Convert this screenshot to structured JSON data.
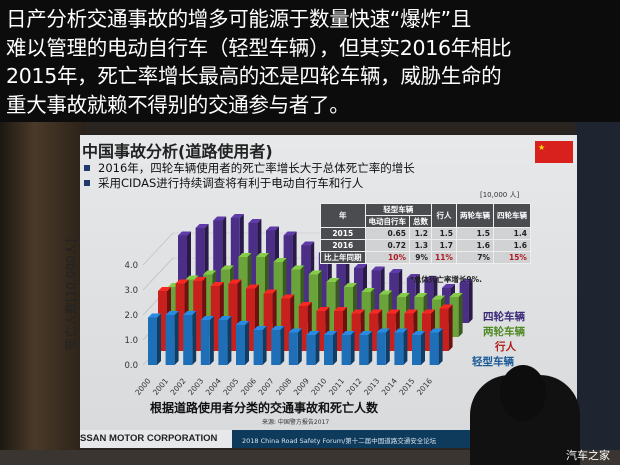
{
  "caption": {
    "lines": [
      "日产分析交通事故的增多可能源于数量快速“爆炸”且",
      "难以管理的电动自行车（轻型车辆），但其实2016年相比",
      "2015年，死亡率增长最高的还是四轮车辆，威胁生命的",
      "重大事故就赖不得别的交通参与者了。"
    ]
  },
  "slide": {
    "title": "中国事故分析(道路使用者)",
    "bullets": [
      "2016年，四轮车辆使用者的死亡率增长大于总体死亡率的增长",
      "采用CIDAS进行持续调查将有利于电动自行车和行人"
    ],
    "unit": "[10,000 人]",
    "table": {
      "header_year": "年",
      "header_group": "轻型车辆",
      "header_ebike": "电动自行车",
      "header_total": "总数",
      "header_ped": "行人",
      "header_two": "两轮车辆",
      "header_four": "四轮车辆",
      "rows": [
        [
          "2015",
          "0.65",
          "1.2",
          "1.5",
          "1.5",
          "1.4"
        ],
        [
          "2016",
          "0.72",
          "1.3",
          "1.7",
          "1.6",
          "1.6"
        ],
        [
          "比上年同期",
          "10%",
          "9%",
          "11%",
          "7%",
          "15%"
        ]
      ]
    },
    "note": "*总体死亡率增长9%.",
    "source": "来源: 中国警方报告2017",
    "footer_company": "SSAN MOTOR CORPORATION",
    "footer_forum": "2018 China Road Safety Forum/第十二届中国道路交通安全论坛"
  },
  "chart_data": {
    "type": "bar",
    "title": "根据道路使用者分类的交通事故和死亡人数",
    "ylabel": "死亡人数[10,000人]",
    "ylim": [
      0,
      4
    ],
    "yticks": [
      "0.0",
      "1.0",
      "2.0",
      "3.0",
      "4.0"
    ],
    "categories": [
      "2000",
      "2001",
      "2002",
      "2003",
      "2004",
      "2005",
      "2006",
      "2007",
      "2008",
      "2009",
      "2010",
      "2011",
      "2012",
      "2013",
      "2014",
      "2015",
      "2016"
    ],
    "legend_position": "right",
    "series": [
      {
        "name": "四轮车辆",
        "color": "#4b2f86",
        "values": [
          3.5,
          3.8,
          4.1,
          4.2,
          4.0,
          3.7,
          3.5,
          3.1,
          2.8,
          2.4,
          2.2,
          2.1,
          2.0,
          1.8,
          1.7,
          1.4,
          1.6
        ]
      },
      {
        "name": "两轮车辆",
        "color": "#6aa33a",
        "values": [
          2.0,
          2.3,
          2.5,
          2.7,
          3.2,
          3.2,
          3.0,
          2.7,
          2.5,
          2.2,
          2.0,
          1.8,
          1.7,
          1.6,
          1.6,
          1.5,
          1.6
        ]
      },
      {
        "name": "行人",
        "color": "#c8201c",
        "values": [
          2.4,
          2.7,
          2.8,
          2.6,
          2.7,
          2.5,
          2.3,
          2.1,
          1.8,
          1.6,
          1.6,
          1.5,
          1.5,
          1.5,
          1.5,
          1.5,
          1.7
        ]
      },
      {
        "name": "轻型车辆",
        "color": "#1f6fb8",
        "values": [
          1.9,
          2.0,
          2.0,
          1.8,
          1.8,
          1.6,
          1.4,
          1.4,
          1.3,
          1.2,
          1.2,
          1.2,
          1.2,
          1.3,
          1.3,
          1.2,
          1.3
        ]
      }
    ]
  },
  "watermark": "汽车之家"
}
